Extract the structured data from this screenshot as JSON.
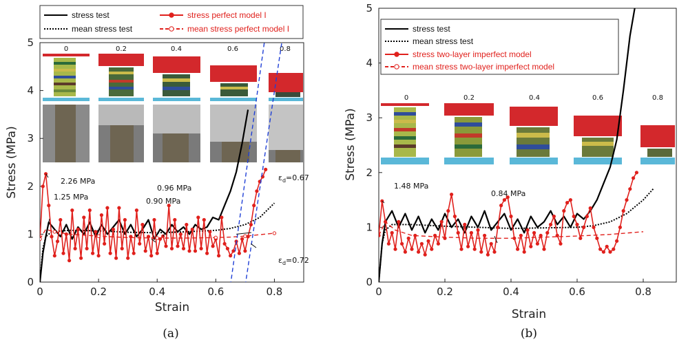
{
  "chart_data": [
    {
      "panel_label": "(a)",
      "type": "line",
      "xlabel": "Strain",
      "ylabel": "Stress (MPa)",
      "xlim": [
        0,
        0.9
      ],
      "ylim": [
        0,
        5
      ],
      "xticks": [
        "0",
        "0.2",
        "0.4",
        "0.6",
        "0.8"
      ],
      "yticks": [
        "0",
        "1",
        "2",
        "3",
        "4",
        "5"
      ],
      "legend_position": "top",
      "snapshot_labels": [
        "0",
        "0.2",
        "0.4",
        "0.6",
        "0.8"
      ],
      "series": [
        {
          "name": "stress test",
          "color": "#000000",
          "style": "solid",
          "x": [
            0.0,
            0.01,
            0.02,
            0.03,
            0.05,
            0.07,
            0.09,
            0.11,
            0.13,
            0.15,
            0.17,
            0.19,
            0.21,
            0.23,
            0.25,
            0.27,
            0.29,
            0.31,
            0.33,
            0.35,
            0.37,
            0.39,
            0.41,
            0.43,
            0.45,
            0.47,
            0.49,
            0.51,
            0.53,
            0.55,
            0.57,
            0.59,
            0.61,
            0.63,
            0.65,
            0.67,
            0.69,
            0.71
          ],
          "y": [
            0.0,
            0.6,
            0.95,
            1.25,
            1.1,
            0.95,
            1.2,
            0.9,
            1.15,
            1.0,
            1.25,
            0.95,
            1.2,
            1.0,
            1.15,
            1.3,
            1.0,
            1.2,
            0.95,
            1.1,
            1.3,
            0.9,
            1.1,
            1.0,
            1.2,
            1.05,
            1.15,
            1.0,
            1.2,
            1.1,
            1.15,
            1.35,
            1.3,
            1.6,
            1.9,
            2.3,
            2.9,
            3.6
          ]
        },
        {
          "name": "mean stress test",
          "color": "#000000",
          "style": "dotted",
          "x": [
            0.0,
            0.01,
            0.02,
            0.04,
            0.1,
            0.2,
            0.3,
            0.4,
            0.5,
            0.6,
            0.65,
            0.7,
            0.75,
            0.8
          ],
          "y": [
            0.0,
            0.7,
            0.95,
            1.05,
            1.08,
            1.07,
            1.04,
            1.03,
            1.05,
            1.08,
            1.12,
            1.2,
            1.35,
            1.65
          ]
        },
        {
          "name": "stress perfect model I",
          "color": "#e0201c",
          "style": "solid-markers",
          "x": [
            0.0,
            0.01,
            0.02,
            0.03,
            0.04,
            0.05,
            0.06,
            0.07,
            0.08,
            0.09,
            0.1,
            0.11,
            0.12,
            0.13,
            0.14,
            0.15,
            0.16,
            0.17,
            0.18,
            0.19,
            0.2,
            0.21,
            0.22,
            0.23,
            0.24,
            0.25,
            0.26,
            0.27,
            0.28,
            0.29,
            0.3,
            0.31,
            0.32,
            0.33,
            0.34,
            0.35,
            0.36,
            0.37,
            0.38,
            0.39,
            0.4,
            0.41,
            0.42,
            0.43,
            0.44,
            0.45,
            0.46,
            0.47,
            0.48,
            0.49,
            0.5,
            0.51,
            0.52,
            0.53,
            0.54,
            0.55,
            0.56,
            0.57,
            0.58,
            0.59,
            0.6,
            0.61,
            0.62,
            0.63,
            0.64,
            0.65,
            0.66,
            0.67,
            0.68,
            0.69,
            0.7,
            0.71,
            0.72,
            0.73,
            0.74,
            0.75,
            0.76,
            0.77
          ],
          "y": [
            0.9,
            2.0,
            2.26,
            1.6,
            0.95,
            0.55,
            0.85,
            1.3,
            0.6,
            1.0,
            0.45,
            1.5,
            0.7,
            1.1,
            0.5,
            1.35,
            0.7,
            1.5,
            0.6,
            1.05,
            0.55,
            1.4,
            0.8,
            1.55,
            0.6,
            1.1,
            0.5,
            1.55,
            0.7,
            1.3,
            0.5,
            0.95,
            0.6,
            1.5,
            0.8,
            1.2,
            0.65,
            0.95,
            0.55,
            1.3,
            0.6,
            0.9,
            0.96,
            0.75,
            1.6,
            0.7,
            1.3,
            0.75,
            1.0,
            0.7,
            1.2,
            0.65,
            1.1,
            0.65,
            1.35,
            0.7,
            1.3,
            0.6,
            1.05,
            0.75,
            0.9,
            0.55,
            1.35,
            0.8,
            0.7,
            0.55,
            0.65,
            0.85,
            0.6,
            0.9,
            0.65,
            0.95,
            1.2,
            1.6,
            1.9,
            2.1,
            2.2,
            2.35
          ]
        },
        {
          "name": "mean stress perfect model I",
          "color": "#e0201c",
          "style": "dashed",
          "x": [
            0.0,
            0.02,
            0.05,
            0.1,
            0.2,
            0.3,
            0.4,
            0.5,
            0.6,
            0.65,
            0.7,
            0.75,
            0.8
          ],
          "y": [
            0.9,
            1.1,
            1.05,
            1.0,
            0.96,
            0.93,
            0.92,
            0.92,
            0.93,
            0.94,
            0.96,
            0.99,
            1.02
          ]
        },
        {
          "name": "",
          "color": "#1f3fd6",
          "style": "dashed",
          "x": [
            0.64,
            0.77
          ],
          "y": [
            -0.5,
            5.2
          ]
        },
        {
          "name": "",
          "color": "#1f3fd6",
          "style": "dashed",
          "x": [
            0.69,
            0.83
          ],
          "y": [
            -0.5,
            5.2
          ]
        }
      ],
      "annotations": [
        {
          "text": "2.26 MPa",
          "x": 0.02,
          "y": 2.26
        },
        {
          "text": "1.25 MPa",
          "x": 0.03,
          "y": 1.25
        },
        {
          "text": "0.96 MPa",
          "x": 0.42,
          "y": 0.96
        },
        {
          "text": "0.90 MPa",
          "x": 0.38,
          "y": 0.9
        },
        {
          "text": "ε",
          "sub": "d",
          "rest": "=0.67",
          "x": 0.67,
          "y": 1.0
        },
        {
          "text": "ε",
          "sub": "d",
          "rest": "=0.72",
          "x": 0.72,
          "y": 0.8
        }
      ]
    },
    {
      "panel_label": "(b)",
      "type": "line",
      "xlabel": "Strain",
      "ylabel": "Stress (MPa)",
      "xlim": [
        0,
        0.9
      ],
      "ylim": [
        0,
        5
      ],
      "xticks": [
        "0",
        "0.2",
        "0.4",
        "0.6",
        "0.8"
      ],
      "yticks": [
        "0",
        "1",
        "2",
        "3",
        "4",
        "5"
      ],
      "legend_position": "top-left",
      "snapshot_labels": [
        "0",
        "0.2",
        "0.4",
        "0.6",
        "0.8"
      ],
      "series": [
        {
          "name": "stress test",
          "color": "#000000",
          "style": "solid",
          "x": [
            0.0,
            0.01,
            0.02,
            0.04,
            0.06,
            0.08,
            0.1,
            0.12,
            0.14,
            0.16,
            0.18,
            0.2,
            0.22,
            0.24,
            0.26,
            0.28,
            0.3,
            0.32,
            0.34,
            0.36,
            0.38,
            0.4,
            0.42,
            0.44,
            0.46,
            0.48,
            0.5,
            0.52,
            0.54,
            0.56,
            0.58,
            0.6,
            0.62,
            0.64,
            0.66,
            0.68,
            0.7,
            0.72,
            0.74,
            0.76,
            0.78
          ],
          "y": [
            0.0,
            0.7,
            1.1,
            1.3,
            1.0,
            1.25,
            0.95,
            1.2,
            0.9,
            1.15,
            0.95,
            1.25,
            1.0,
            1.15,
            0.9,
            1.2,
            1.0,
            1.3,
            0.95,
            1.1,
            1.25,
            0.95,
            1.15,
            0.9,
            1.2,
            1.0,
            1.1,
            1.3,
            1.05,
            1.2,
            1.0,
            1.25,
            1.15,
            1.3,
            1.5,
            1.8,
            2.1,
            2.6,
            3.5,
            4.5,
            5.2
          ]
        },
        {
          "name": "mean stress test",
          "color": "#000000",
          "style": "dotted",
          "x": [
            0.0,
            0.01,
            0.02,
            0.04,
            0.1,
            0.2,
            0.3,
            0.4,
            0.5,
            0.6,
            0.65,
            0.7,
            0.75,
            0.8,
            0.83
          ],
          "y": [
            0.0,
            0.7,
            0.95,
            1.05,
            1.05,
            1.02,
            1.0,
            0.98,
            0.99,
            1.0,
            1.03,
            1.1,
            1.25,
            1.5,
            1.7
          ]
        },
        {
          "name": "stress two-layer imperfect model",
          "color": "#e0201c",
          "style": "solid-markers",
          "x": [
            0.0,
            0.01,
            0.02,
            0.03,
            0.04,
            0.05,
            0.06,
            0.07,
            0.08,
            0.09,
            0.1,
            0.11,
            0.12,
            0.13,
            0.14,
            0.15,
            0.16,
            0.17,
            0.18,
            0.19,
            0.2,
            0.21,
            0.22,
            0.23,
            0.24,
            0.25,
            0.26,
            0.27,
            0.28,
            0.29,
            0.3,
            0.31,
            0.32,
            0.33,
            0.34,
            0.35,
            0.36,
            0.37,
            0.38,
            0.39,
            0.4,
            0.41,
            0.42,
            0.43,
            0.44,
            0.45,
            0.46,
            0.47,
            0.48,
            0.49,
            0.5,
            0.51,
            0.52,
            0.53,
            0.54,
            0.55,
            0.56,
            0.57,
            0.58,
            0.59,
            0.6,
            0.61,
            0.62,
            0.63,
            0.64,
            0.65,
            0.66,
            0.67,
            0.68,
            0.69,
            0.7,
            0.71,
            0.72,
            0.73,
            0.74,
            0.75,
            0.76,
            0.77,
            0.78
          ],
          "y": [
            0.85,
            1.48,
            1.1,
            0.7,
            0.9,
            0.6,
            1.1,
            0.7,
            0.55,
            0.8,
            0.6,
            0.85,
            0.55,
            0.7,
            0.5,
            0.75,
            0.6,
            0.85,
            0.7,
            1.1,
            0.8,
            1.3,
            1.6,
            1.2,
            0.9,
            0.6,
            1.05,
            0.65,
            0.9,
            0.6,
            0.95,
            0.55,
            0.85,
            0.5,
            0.7,
            0.55,
            1.0,
            1.4,
            1.5,
            1.55,
            1.2,
            0.8,
            0.6,
            0.85,
            0.55,
            0.95,
            0.65,
            0.9,
            0.7,
            0.85,
            0.6,
            0.9,
            1.05,
            1.2,
            0.85,
            0.7,
            1.3,
            1.45,
            1.5,
            1.2,
            1.05,
            0.8,
            1.0,
            1.2,
            1.35,
            1.0,
            0.8,
            0.6,
            0.55,
            0.65,
            0.55,
            0.6,
            0.75,
            1.0,
            1.3,
            1.5,
            1.7,
            1.9,
            2.0
          ]
        },
        {
          "name": "mean stress two-layer imperfect model",
          "color": "#e0201c",
          "style": "dashed",
          "x": [
            0.0,
            0.02,
            0.05,
            0.1,
            0.2,
            0.3,
            0.4,
            0.5,
            0.6,
            0.7,
            0.8
          ],
          "y": [
            0.85,
            1.1,
            0.95,
            0.85,
            0.82,
            0.8,
            0.8,
            0.82,
            0.84,
            0.87,
            0.92
          ]
        }
      ],
      "annotations": [
        {
          "text": "1.48 MPa",
          "x": 0.01,
          "y": 1.48
        },
        {
          "text": "0.84 MPa",
          "x": 0.35,
          "y": 0.84
        }
      ]
    }
  ]
}
